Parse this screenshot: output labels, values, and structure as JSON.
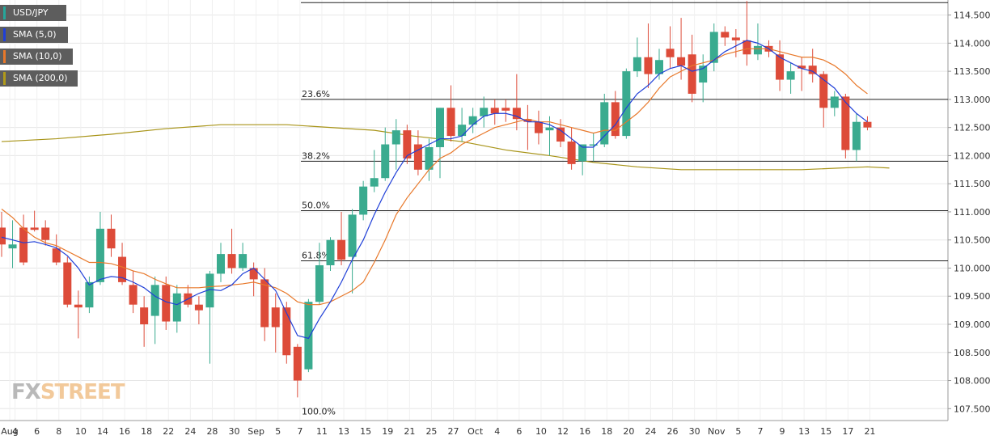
{
  "legend": {
    "items": [
      {
        "label": "USD/JPY",
        "color": "#26a69a"
      },
      {
        "label": "SMA (5,0)",
        "color": "#1f3fd8"
      },
      {
        "label": "SMA (10,0)",
        "color": "#e8782a"
      },
      {
        "label": "SMA (200,0)",
        "color": "#b09a1a"
      }
    ]
  },
  "logo": {
    "part1": "FX",
    "part2": "STREET"
  },
  "colors": {
    "up": "#3aab8f",
    "down": "#dd4b39",
    "sma5": "#1f3fd8",
    "sma10": "#e8782a",
    "sma200": "#a89418",
    "fib": "#222222",
    "grid": "#e6e6e6"
  },
  "chart_data": {
    "type": "candlestick",
    "title": "USD/JPY",
    "ylim": [
      107.3,
      114.75
    ],
    "yticks": [
      "107.500",
      "108.000",
      "108.500",
      "109.000",
      "109.500",
      "110.000",
      "110.500",
      "111.000",
      "111.500",
      "112.000",
      "112.500",
      "113.000",
      "113.500",
      "114.000",
      "114.500"
    ],
    "xtick_labels": [
      "Aug",
      "4",
      "6",
      "8",
      "10",
      "14",
      "16",
      "18",
      "22",
      "24",
      "28",
      "30",
      "Sep",
      "5",
      "7",
      "11",
      "13",
      "15",
      "19",
      "21",
      "25",
      "27",
      "Oct",
      "4",
      "6",
      "10",
      "12",
      "16",
      "18",
      "20",
      "24",
      "26",
      "30",
      "Nov",
      "5",
      "7",
      "9",
      "13",
      "15",
      "17",
      "21"
    ],
    "candles": [
      {
        "o": 110.72,
        "h": 111.0,
        "l": 110.2,
        "c": 110.42
      },
      {
        "o": 110.35,
        "h": 110.85,
        "l": 110.0,
        "c": 110.42
      },
      {
        "o": 110.72,
        "h": 110.95,
        "l": 110.05,
        "c": 110.1
      },
      {
        "o": 110.72,
        "h": 111.02,
        "l": 110.65,
        "c": 110.68
      },
      {
        "o": 110.72,
        "h": 110.85,
        "l": 110.4,
        "c": 110.5
      },
      {
        "o": 110.35,
        "h": 110.6,
        "l": 110.05,
        "c": 110.1
      },
      {
        "o": 110.1,
        "h": 110.2,
        "l": 109.3,
        "c": 109.35
      },
      {
        "o": 109.35,
        "h": 109.6,
        "l": 108.75,
        "c": 109.3
      },
      {
        "o": 109.3,
        "h": 109.85,
        "l": 109.2,
        "c": 109.75
      },
      {
        "o": 109.75,
        "h": 111.0,
        "l": 109.7,
        "c": 110.7
      },
      {
        "o": 110.7,
        "h": 110.95,
        "l": 110.2,
        "c": 110.35
      },
      {
        "o": 110.2,
        "h": 110.45,
        "l": 109.7,
        "c": 109.75
      },
      {
        "o": 109.7,
        "h": 109.95,
        "l": 109.2,
        "c": 109.35
      },
      {
        "o": 109.3,
        "h": 109.5,
        "l": 108.6,
        "c": 109.0
      },
      {
        "o": 109.15,
        "h": 109.85,
        "l": 108.65,
        "c": 109.7
      },
      {
        "o": 109.7,
        "h": 109.85,
        "l": 108.9,
        "c": 109.05
      },
      {
        "o": 109.05,
        "h": 109.7,
        "l": 108.85,
        "c": 109.55
      },
      {
        "o": 109.55,
        "h": 109.7,
        "l": 109.3,
        "c": 109.35
      },
      {
        "o": 109.35,
        "h": 109.5,
        "l": 109.0,
        "c": 109.25
      },
      {
        "o": 109.3,
        "h": 109.95,
        "l": 108.3,
        "c": 109.9
      },
      {
        "o": 109.9,
        "h": 110.45,
        "l": 109.75,
        "c": 110.25
      },
      {
        "o": 110.25,
        "h": 110.7,
        "l": 109.9,
        "c": 110.0
      },
      {
        "o": 110.0,
        "h": 110.45,
        "l": 109.95,
        "c": 110.25
      },
      {
        "o": 110.0,
        "h": 110.1,
        "l": 109.5,
        "c": 109.8
      },
      {
        "o": 109.8,
        "h": 110.0,
        "l": 108.7,
        "c": 108.95
      },
      {
        "o": 109.3,
        "h": 109.55,
        "l": 108.5,
        "c": 108.95
      },
      {
        "o": 109.3,
        "h": 109.4,
        "l": 108.3,
        "c": 108.45
      },
      {
        "o": 108.6,
        "h": 108.65,
        "l": 107.7,
        "c": 108.0
      },
      {
        "o": 108.2,
        "h": 109.45,
        "l": 108.15,
        "c": 109.4
      },
      {
        "o": 109.4,
        "h": 110.45,
        "l": 109.35,
        "c": 110.05
      },
      {
        "o": 110.05,
        "h": 110.55,
        "l": 109.95,
        "c": 110.5
      },
      {
        "o": 110.5,
        "h": 111.0,
        "l": 110.05,
        "c": 110.15
      },
      {
        "o": 110.2,
        "h": 111.05,
        "l": 109.55,
        "c": 110.95
      },
      {
        "o": 110.95,
        "h": 111.55,
        "l": 110.85,
        "c": 111.45
      },
      {
        "o": 111.45,
        "h": 112.1,
        "l": 111.35,
        "c": 111.6
      },
      {
        "o": 111.6,
        "h": 112.5,
        "l": 111.55,
        "c": 112.2
      },
      {
        "o": 112.2,
        "h": 112.65,
        "l": 111.75,
        "c": 112.45
      },
      {
        "o": 112.45,
        "h": 112.55,
        "l": 111.85,
        "c": 111.95
      },
      {
        "o": 112.2,
        "h": 112.45,
        "l": 111.65,
        "c": 111.75
      },
      {
        "o": 111.75,
        "h": 112.3,
        "l": 111.55,
        "c": 112.15
      },
      {
        "o": 112.15,
        "h": 112.85,
        "l": 111.6,
        "c": 112.85
      },
      {
        "o": 112.85,
        "h": 113.25,
        "l": 112.25,
        "c": 112.35
      },
      {
        "o": 112.35,
        "h": 112.85,
        "l": 112.25,
        "c": 112.55
      },
      {
        "o": 112.55,
        "h": 112.85,
        "l": 112.4,
        "c": 112.7
      },
      {
        "o": 112.7,
        "h": 113.05,
        "l": 112.5,
        "c": 112.85
      },
      {
        "o": 112.85,
        "h": 113.0,
        "l": 112.55,
        "c": 112.75
      },
      {
        "o": 112.85,
        "h": 113.0,
        "l": 112.6,
        "c": 112.8
      },
      {
        "o": 112.85,
        "h": 113.45,
        "l": 112.45,
        "c": 112.65
      },
      {
        "o": 112.65,
        "h": 112.9,
        "l": 112.1,
        "c": 112.6
      },
      {
        "o": 112.6,
        "h": 112.8,
        "l": 112.2,
        "c": 112.4
      },
      {
        "o": 112.45,
        "h": 112.7,
        "l": 112.0,
        "c": 112.5
      },
      {
        "o": 112.5,
        "h": 112.65,
        "l": 112.15,
        "c": 112.25
      },
      {
        "o": 112.25,
        "h": 112.5,
        "l": 111.75,
        "c": 111.85
      },
      {
        "o": 111.9,
        "h": 112.2,
        "l": 111.65,
        "c": 112.2
      },
      {
        "o": 112.2,
        "h": 112.4,
        "l": 111.9,
        "c": 112.2
      },
      {
        "o": 112.2,
        "h": 113.1,
        "l": 112.15,
        "c": 112.95
      },
      {
        "o": 112.95,
        "h": 113.15,
        "l": 112.3,
        "c": 112.35
      },
      {
        "o": 112.35,
        "h": 113.55,
        "l": 112.3,
        "c": 113.5
      },
      {
        "o": 113.5,
        "h": 114.1,
        "l": 113.4,
        "c": 113.75
      },
      {
        "o": 113.75,
        "h": 114.35,
        "l": 113.2,
        "c": 113.45
      },
      {
        "o": 113.45,
        "h": 113.9,
        "l": 113.35,
        "c": 113.7
      },
      {
        "o": 113.9,
        "h": 114.3,
        "l": 113.55,
        "c": 113.75
      },
      {
        "o": 113.75,
        "h": 114.45,
        "l": 113.35,
        "c": 113.6
      },
      {
        "o": 113.8,
        "h": 114.15,
        "l": 112.95,
        "c": 113.1
      },
      {
        "o": 113.3,
        "h": 113.8,
        "l": 112.95,
        "c": 113.6
      },
      {
        "o": 113.65,
        "h": 114.35,
        "l": 113.5,
        "c": 114.2
      },
      {
        "o": 114.2,
        "h": 114.3,
        "l": 113.95,
        "c": 114.1
      },
      {
        "o": 114.1,
        "h": 114.25,
        "l": 113.75,
        "c": 114.05
      },
      {
        "o": 114.05,
        "h": 114.75,
        "l": 113.6,
        "c": 113.8
      },
      {
        "o": 113.8,
        "h": 114.35,
        "l": 113.7,
        "c": 113.95
      },
      {
        "o": 113.95,
        "h": 114.05,
        "l": 113.75,
        "c": 113.85
      },
      {
        "o": 113.8,
        "h": 114.05,
        "l": 113.15,
        "c": 113.35
      },
      {
        "o": 113.35,
        "h": 113.65,
        "l": 113.1,
        "c": 113.5
      },
      {
        "o": 113.6,
        "h": 113.75,
        "l": 113.15,
        "c": 113.55
      },
      {
        "o": 113.6,
        "h": 113.9,
        "l": 113.3,
        "c": 113.45
      },
      {
        "o": 113.45,
        "h": 113.5,
        "l": 112.5,
        "c": 112.85
      },
      {
        "o": 112.85,
        "h": 113.15,
        "l": 112.7,
        "c": 113.05
      },
      {
        "o": 113.05,
        "h": 113.1,
        "l": 111.95,
        "c": 112.1
      },
      {
        "o": 112.1,
        "h": 112.75,
        "l": 111.9,
        "c": 112.6
      },
      {
        "o": 112.6,
        "h": 112.7,
        "l": 112.45,
        "c": 112.5
      }
    ],
    "series": [
      {
        "name": "SMA (5,0)",
        "values": [
          110.55,
          110.5,
          110.45,
          110.47,
          110.42,
          110.36,
          110.22,
          110.0,
          109.7,
          109.8,
          109.85,
          109.83,
          109.75,
          109.65,
          109.5,
          109.4,
          109.35,
          109.45,
          109.55,
          109.62,
          109.6,
          109.7,
          109.9,
          110.0,
          109.8,
          109.6,
          109.2,
          108.8,
          108.75,
          109.1,
          109.4,
          109.75,
          110.15,
          110.5,
          110.95,
          111.35,
          111.7,
          112.0,
          112.1,
          112.2,
          112.3,
          112.3,
          112.35,
          112.55,
          112.7,
          112.75,
          112.75,
          112.7,
          112.6,
          112.6,
          112.55,
          112.45,
          112.3,
          112.15,
          112.15,
          112.35,
          112.55,
          112.85,
          113.1,
          113.25,
          113.45,
          113.55,
          113.6,
          113.5,
          113.55,
          113.7,
          113.85,
          113.95,
          114.05,
          114.0,
          113.9,
          113.75,
          113.65,
          113.55,
          113.5,
          113.35,
          113.2,
          112.95,
          112.75,
          112.6
        ]
      },
      {
        "name": "SMA (10,0)",
        "values": [
          111.05,
          110.9,
          110.7,
          110.55,
          110.45,
          110.4,
          110.3,
          110.2,
          110.1,
          110.1,
          110.08,
          110.02,
          109.95,
          109.9,
          109.8,
          109.72,
          109.65,
          109.65,
          109.65,
          109.67,
          109.68,
          109.7,
          109.72,
          109.75,
          109.7,
          109.65,
          109.55,
          109.4,
          109.35,
          109.35,
          109.4,
          109.5,
          109.6,
          109.75,
          110.1,
          110.5,
          110.95,
          111.25,
          111.5,
          111.75,
          111.95,
          112.05,
          112.2,
          112.3,
          112.4,
          112.5,
          112.55,
          112.6,
          112.65,
          112.6,
          112.6,
          112.55,
          112.5,
          112.45,
          112.4,
          112.45,
          112.45,
          112.6,
          112.75,
          112.95,
          113.2,
          113.4,
          113.5,
          113.6,
          113.65,
          113.7,
          113.8,
          113.85,
          113.9,
          113.9,
          113.9,
          113.85,
          113.8,
          113.75,
          113.75,
          113.7,
          113.6,
          113.45,
          113.25,
          113.1
        ]
      },
      {
        "name": "SMA (200,0)",
        "points": [
          [
            0,
            112.25
          ],
          [
            10,
            112.3
          ],
          [
            20,
            112.38
          ],
          [
            30,
            112.48
          ],
          [
            40,
            112.55
          ],
          [
            52,
            112.55
          ],
          [
            60,
            112.5
          ],
          [
            68,
            112.45
          ],
          [
            75,
            112.35
          ],
          [
            84,
            112.25
          ],
          [
            92,
            112.1
          ],
          [
            100,
            112.0
          ],
          [
            108,
            111.88
          ],
          [
            116,
            111.8
          ],
          [
            124,
            111.75
          ],
          [
            134,
            111.75
          ],
          [
            146,
            111.75
          ],
          [
            158,
            111.8
          ],
          [
            162,
            111.78
          ]
        ]
      }
    ],
    "fib_levels": [
      {
        "label": "23.6%",
        "value": 113.0
      },
      {
        "label": "38.2%",
        "value": 111.9
      },
      {
        "label": "50.0%",
        "value": 111.02
      },
      {
        "label": "61.8%",
        "value": 110.13
      },
      {
        "label": "100.0%",
        "value": 107.35
      }
    ],
    "top_line": 114.72
  }
}
